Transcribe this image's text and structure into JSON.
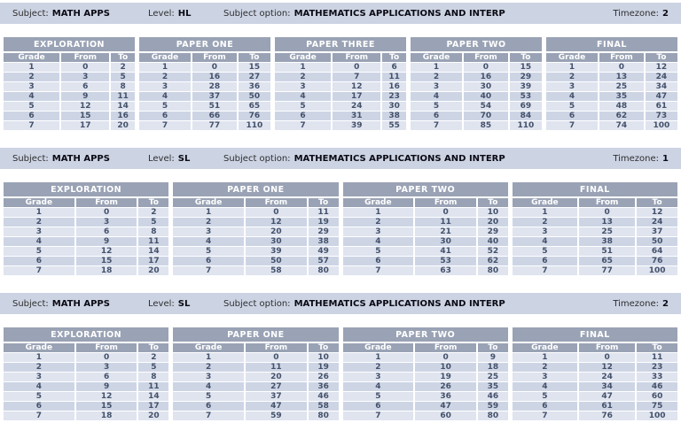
{
  "labels": {
    "subject": "Subject:",
    "level": "Level:",
    "subject_option": "Subject option:",
    "timezone": "Timezone:"
  },
  "columns": [
    "Grade",
    "From",
    "To"
  ],
  "colors": {
    "bar_bg": "#ccd3e3",
    "header_bg": "#9aa3b5",
    "row_odd": "#dfe4ef",
    "row_even": "#cdd5e5",
    "cell_text": "#44516b"
  },
  "sections": [
    {
      "subject": "MATH APPS",
      "level": "HL",
      "subject_option": "MATHEMATICS APPLICATIONS AND INTERP",
      "timezone": "2",
      "tables": [
        {
          "title": "EXPLORATION",
          "rows": [
            [
              1,
              0,
              2
            ],
            [
              2,
              3,
              5
            ],
            [
              3,
              6,
              8
            ],
            [
              4,
              9,
              11
            ],
            [
              5,
              12,
              14
            ],
            [
              6,
              15,
              16
            ],
            [
              7,
              17,
              20
            ]
          ]
        },
        {
          "title": "PAPER ONE",
          "rows": [
            [
              1,
              0,
              15
            ],
            [
              2,
              16,
              27
            ],
            [
              3,
              28,
              36
            ],
            [
              4,
              37,
              50
            ],
            [
              5,
              51,
              65
            ],
            [
              6,
              66,
              76
            ],
            [
              7,
              77,
              110
            ]
          ]
        },
        {
          "title": "PAPER THREE",
          "rows": [
            [
              1,
              0,
              6
            ],
            [
              2,
              7,
              11
            ],
            [
              3,
              12,
              16
            ],
            [
              4,
              17,
              23
            ],
            [
              5,
              24,
              30
            ],
            [
              6,
              31,
              38
            ],
            [
              7,
              39,
              55
            ]
          ]
        },
        {
          "title": "PAPER TWO",
          "rows": [
            [
              1,
              0,
              15
            ],
            [
              2,
              16,
              29
            ],
            [
              3,
              30,
              39
            ],
            [
              4,
              40,
              53
            ],
            [
              5,
              54,
              69
            ],
            [
              6,
              70,
              84
            ],
            [
              7,
              85,
              110
            ]
          ]
        },
        {
          "title": "FINAL",
          "rows": [
            [
              1,
              0,
              12
            ],
            [
              2,
              13,
              24
            ],
            [
              3,
              25,
              34
            ],
            [
              4,
              35,
              47
            ],
            [
              5,
              48,
              61
            ],
            [
              6,
              62,
              73
            ],
            [
              7,
              74,
              100
            ]
          ]
        }
      ]
    },
    {
      "subject": "MATH APPS",
      "level": "SL",
      "subject_option": "MATHEMATICS APPLICATIONS AND INTERP",
      "timezone": "1",
      "tables": [
        {
          "title": "EXPLORATION",
          "rows": [
            [
              1,
              0,
              2
            ],
            [
              2,
              3,
              5
            ],
            [
              3,
              6,
              8
            ],
            [
              4,
              9,
              11
            ],
            [
              5,
              12,
              14
            ],
            [
              6,
              15,
              17
            ],
            [
              7,
              18,
              20
            ]
          ]
        },
        {
          "title": "PAPER ONE",
          "rows": [
            [
              1,
              0,
              11
            ],
            [
              2,
              12,
              19
            ],
            [
              3,
              20,
              29
            ],
            [
              4,
              30,
              38
            ],
            [
              5,
              39,
              49
            ],
            [
              6,
              50,
              57
            ],
            [
              7,
              58,
              80
            ]
          ]
        },
        {
          "title": "PAPER TWO",
          "rows": [
            [
              1,
              0,
              10
            ],
            [
              2,
              11,
              20
            ],
            [
              3,
              21,
              29
            ],
            [
              4,
              30,
              40
            ],
            [
              5,
              41,
              52
            ],
            [
              6,
              53,
              62
            ],
            [
              7,
              63,
              80
            ]
          ]
        },
        {
          "title": "FINAL",
          "rows": [
            [
              1,
              0,
              12
            ],
            [
              2,
              13,
              24
            ],
            [
              3,
              25,
              37
            ],
            [
              4,
              38,
              50
            ],
            [
              5,
              51,
              64
            ],
            [
              6,
              65,
              76
            ],
            [
              7,
              77,
              100
            ]
          ]
        }
      ]
    },
    {
      "subject": "MATH APPS",
      "level": "SL",
      "subject_option": "MATHEMATICS APPLICATIONS AND INTERP",
      "timezone": "2",
      "tables": [
        {
          "title": "EXPLORATION",
          "rows": [
            [
              1,
              0,
              2
            ],
            [
              2,
              3,
              5
            ],
            [
              3,
              6,
              8
            ],
            [
              4,
              9,
              11
            ],
            [
              5,
              12,
              14
            ],
            [
              6,
              15,
              17
            ],
            [
              7,
              18,
              20
            ]
          ]
        },
        {
          "title": "PAPER ONE",
          "rows": [
            [
              1,
              0,
              10
            ],
            [
              2,
              11,
              19
            ],
            [
              3,
              20,
              26
            ],
            [
              4,
              27,
              36
            ],
            [
              5,
              37,
              46
            ],
            [
              6,
              47,
              58
            ],
            [
              7,
              59,
              80
            ]
          ]
        },
        {
          "title": "PAPER TWO",
          "rows": [
            [
              1,
              0,
              9
            ],
            [
              2,
              10,
              18
            ],
            [
              3,
              19,
              25
            ],
            [
              4,
              26,
              35
            ],
            [
              5,
              36,
              46
            ],
            [
              6,
              47,
              59
            ],
            [
              7,
              60,
              80
            ]
          ]
        },
        {
          "title": "FINAL",
          "rows": [
            [
              1,
              0,
              11
            ],
            [
              2,
              12,
              23
            ],
            [
              3,
              24,
              33
            ],
            [
              4,
              34,
              46
            ],
            [
              5,
              47,
              60
            ],
            [
              6,
              61,
              75
            ],
            [
              7,
              76,
              100
            ]
          ]
        }
      ]
    }
  ]
}
